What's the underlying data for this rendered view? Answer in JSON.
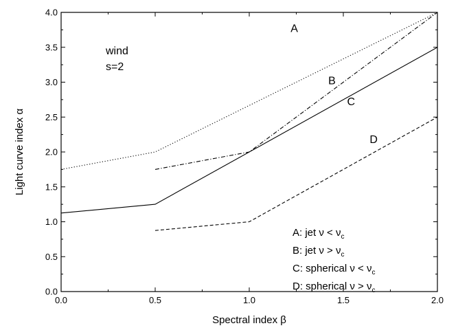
{
  "chart_data": {
    "type": "line",
    "xlabel": "Spectral index β",
    "ylabel": "Light curve index α",
    "xlim": [
      0,
      2
    ],
    "ylim": [
      0,
      4
    ],
    "x_ticks": [
      "0.0",
      "0.5",
      "1.0",
      "1.5",
      "2.0"
    ],
    "y_ticks": [
      "0.0",
      "0.5",
      "1.0",
      "1.5",
      "2.0",
      "2.5",
      "3.0",
      "3.5",
      "4.0"
    ],
    "annotation": {
      "line1": "wind",
      "line2": "s=2"
    },
    "series": [
      {
        "name": "A",
        "dash": "dotted",
        "x": [
          0,
          0.5,
          2.0
        ],
        "y": [
          1.75,
          2.0,
          4.0
        ],
        "label_at": [
          1.22,
          3.72
        ]
      },
      {
        "name": "B",
        "dash": "dashdot",
        "x": [
          0.5,
          1.0,
          2.0
        ],
        "y": [
          1.75,
          2.0,
          4.0
        ],
        "label_at": [
          1.42,
          2.97
        ]
      },
      {
        "name": "C",
        "dash": "solid",
        "x": [
          0,
          0.5,
          2.0
        ],
        "y": [
          1.125,
          1.25,
          3.5
        ],
        "label_at": [
          1.52,
          2.67
        ]
      },
      {
        "name": "D",
        "dash": "dashed",
        "x": [
          0.5,
          1.0,
          2.0
        ],
        "y": [
          0.875,
          1.0,
          2.5
        ],
        "label_at": [
          1.64,
          2.13
        ]
      }
    ],
    "legend": [
      {
        "key": "A:",
        "kind": "jet",
        "rel": "<",
        "sub": "c"
      },
      {
        "key": "B:",
        "kind": "jet",
        "rel": ">",
        "sub": "c"
      },
      {
        "key": "C:",
        "kind": "spherical",
        "rel": "<",
        "sub": "c"
      },
      {
        "key": "D:",
        "kind": "spherical",
        "rel": ">",
        "sub": "c"
      }
    ],
    "legend_placement": "bottom-right",
    "grid": false
  }
}
